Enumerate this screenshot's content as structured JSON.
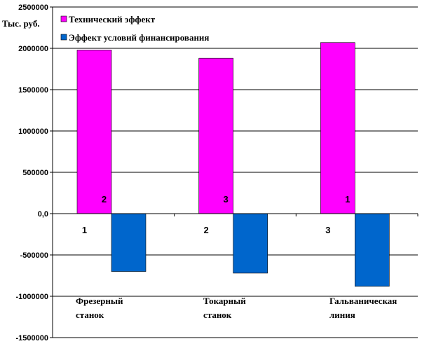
{
  "chart_data": {
    "type": "bar",
    "ylabel": "Тыс. руб.",
    "ylim": [
      -1500000,
      2500000
    ],
    "y_ticks": [
      2500000,
      2000000,
      1500000,
      1000000,
      500000,
      0,
      -500000,
      -1000000,
      -1500000
    ],
    "y_tick_labels": [
      "2500000",
      "2000000",
      "1500000",
      "1000000",
      "500000",
      "0,0",
      "-500000",
      "-1000000",
      "-1500000"
    ],
    "grid": true,
    "legend_position": "top-left",
    "categories": [
      [
        "Фрезерный",
        "станок"
      ],
      [
        "Токарный",
        "станок"
      ],
      [
        "Гальваническая",
        "линия"
      ]
    ],
    "series": [
      {
        "name": "Технический эффект",
        "color": "#ff00ff",
        "values": [
          1980000,
          1880000,
          2070000
        ],
        "rank_labels": [
          "1",
          "2",
          "3"
        ]
      },
      {
        "name": "Эффект условий финансирования",
        "color": "#0066cc",
        "values": [
          -700000,
          -720000,
          -880000
        ],
        "rank_labels": [
          "2",
          "3",
          "1"
        ]
      }
    ]
  }
}
